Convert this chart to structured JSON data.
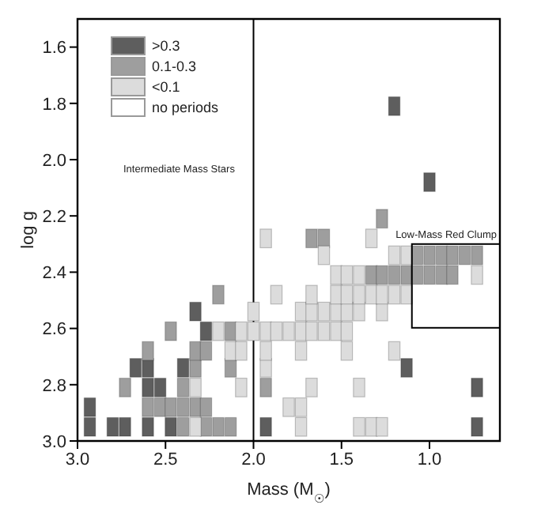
{
  "chart_data": {
    "type": "scatter",
    "xlabel": "Mass (M$_{☉}$)",
    "ylabel": "log g",
    "xlim": [
      3.0,
      0.6
    ],
    "ylim": [
      3.0,
      1.5
    ],
    "xticks": [
      {
        "value": 3,
        "label": "3.0"
      },
      2.5,
      {
        "value": 2,
        "label": "2.0"
      },
      1.5,
      {
        "value": 1,
        "label": "1.0"
      }
    ],
    "yticks": [
      1.6,
      1.8,
      {
        "value": 2,
        "label": "2.0"
      },
      2.2,
      2.4,
      2.6,
      2.8,
      {
        "value": 3,
        "label": "3.0"
      }
    ],
    "marker": "square",
    "legend": "top left",
    "series": [
      {
        "name": ">0.3",
        "color": "#5e5e5e",
        "x": [
          2.93,
          2.93,
          2.8,
          2.73,
          2.6,
          2.47,
          1.93,
          0.73,
          2.6,
          2.53,
          0.73,
          2.67,
          2.6,
          2.4,
          1.13,
          2.27,
          2.33,
          1.0,
          1.2
        ],
        "values": [
          2.95,
          2.88,
          2.95,
          2.95,
          2.95,
          2.95,
          2.95,
          2.95,
          2.81,
          2.81,
          2.81,
          2.74,
          2.74,
          2.74,
          2.74,
          2.61,
          2.54,
          2.08,
          1.81
        ]
      },
      {
        "name": "0.1-0.3",
        "color": "#9e9e9e",
        "x": [
          2.73,
          2.6,
          2.53,
          2.47,
          2.4,
          2.33,
          2.27,
          2.4,
          2.27,
          2.2,
          2.13,
          2.4,
          2.33,
          2.13,
          1.93,
          2.6,
          2.33,
          2.27,
          2.47,
          2.13,
          2.2,
          1.67,
          1.6,
          1.27,
          1.33,
          1.27,
          1.2,
          1.13,
          1.07,
          1.0,
          0.93,
          0.87,
          1.07,
          1.0,
          0.93,
          0.87,
          0.8,
          0.73
        ],
        "values": [
          2.81,
          2.88,
          2.88,
          2.88,
          2.88,
          2.88,
          2.88,
          2.95,
          2.95,
          2.95,
          2.95,
          2.81,
          2.74,
          2.74,
          2.81,
          2.68,
          2.68,
          2.68,
          2.61,
          2.61,
          2.48,
          2.28,
          2.28,
          2.21,
          2.41,
          2.41,
          2.41,
          2.41,
          2.41,
          2.41,
          2.41,
          2.41,
          2.34,
          2.34,
          2.34,
          2.34,
          2.34,
          2.34
        ]
      },
      {
        "name": "<0.1",
        "color": "#dcdcdc",
        "x": [
          2.33,
          1.73,
          1.4,
          1.33,
          1.27,
          1.8,
          1.73,
          2.33,
          2.07,
          1.67,
          1.4,
          1.93,
          2.13,
          2.07,
          1.93,
          1.73,
          1.47,
          1.2,
          2.2,
          2.07,
          2.0,
          1.93,
          1.87,
          1.8,
          1.73,
          1.67,
          1.6,
          1.53,
          1.47,
          2.0,
          1.73,
          1.67,
          1.6,
          1.53,
          1.47,
          1.4,
          1.27,
          1.87,
          1.67,
          1.53,
          1.47,
          1.4,
          1.33,
          1.27,
          1.2,
          1.13,
          1.53,
          1.47,
          1.4,
          0.73,
          1.6,
          1.2,
          1.13,
          1.93,
          1.33
        ],
        "values": [
          2.95,
          2.95,
          2.95,
          2.95,
          2.95,
          2.88,
          2.88,
          2.81,
          2.81,
          2.81,
          2.81,
          2.74,
          2.68,
          2.68,
          2.68,
          2.68,
          2.68,
          2.68,
          2.61,
          2.61,
          2.61,
          2.61,
          2.61,
          2.61,
          2.61,
          2.61,
          2.61,
          2.61,
          2.61,
          2.54,
          2.54,
          2.54,
          2.54,
          2.54,
          2.54,
          2.54,
          2.54,
          2.48,
          2.48,
          2.48,
          2.48,
          2.48,
          2.48,
          2.48,
          2.48,
          2.48,
          2.41,
          2.41,
          2.41,
          2.41,
          2.34,
          2.34,
          2.34,
          2.28,
          2.28
        ]
      },
      {
        "name": "no periods",
        "color": "#ffffff"
      }
    ],
    "ref_lines": [
      {
        "axis": "x",
        "value": 2.0,
        "label": null
      }
    ],
    "annotations": [
      "Intermediate Mass Stars",
      {
        "text": "Low-Mass Red Clump",
        "x": 1.1,
        "y": 2.3
      }
    ]
  }
}
